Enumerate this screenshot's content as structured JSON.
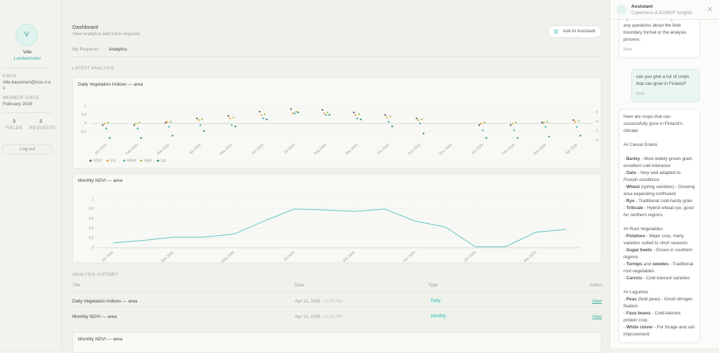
{
  "sidebar": {
    "avatar": "V",
    "name": "Ville",
    "role": "Landactivator",
    "email_label": "EMAIL",
    "email": "ville.kasurinen@icos-ri.eu",
    "member_label": "MEMBER SINCE",
    "member_since": "February 2026",
    "stats": [
      {
        "value": 3,
        "label": "FIELDS"
      },
      {
        "value": 3,
        "label": "REQUESTS"
      }
    ],
    "logout": "Log out"
  },
  "header": {
    "title": "Dashboard",
    "subtitle": "View analytics and track requests",
    "ask_button": "Ask AI Assistant",
    "tabs": [
      "My Requests",
      "Analytics"
    ]
  },
  "latest_analysis": {
    "heading": "LATEST ANALYSIS",
    "charts": [
      {
        "type": "scatter",
        "title": "Daily Vegetation Indices — area",
        "categories": [
          "Jan 2025",
          "Feb 2025",
          "Mar 2025",
          "Apr 2025",
          "May 2025",
          "Jun 2025",
          "Jul 2025",
          "Aug 2025",
          "Sep 2025",
          "Oct 2025",
          "Nov 2025",
          "Dec 2025",
          "Jan 2026",
          "Feb 2026",
          "Mar 2026",
          "Apr 2026"
        ],
        "series": [
          {
            "name": "NDVI",
            "color": "#555555",
            "values": [
              -0.1,
              -0.1,
              0.05,
              0.3,
              0.45,
              0.7,
              0.85,
              0.8,
              0.65,
              0.5,
              0.3,
              null,
              -0.1,
              -0.1,
              0.05,
              0.2
            ]
          },
          {
            "name": "EVI",
            "color": "#e0a030",
            "values": [
              0.0,
              0.0,
              0.1,
              0.2,
              0.3,
              0.5,
              0.6,
              0.6,
              0.5,
              0.35,
              0.2,
              null,
              0.0,
              0.0,
              0.05,
              0.1
            ]
          },
          {
            "name": "NDWI",
            "color": "#3ab0a0",
            "values": [
              -0.3,
              -0.3,
              -0.2,
              -0.1,
              -0.1,
              0.3,
              0.6,
              0.5,
              0.3,
              0.1,
              0.0,
              null,
              -0.4,
              -0.4,
              -0.2,
              -0.2
            ]
          },
          {
            "name": "SAVI",
            "color": "#a0c040",
            "values": [
              0.05,
              0.05,
              0.1,
              0.25,
              0.35,
              0.55,
              0.7,
              0.65,
              0.55,
              0.4,
              0.25,
              null,
              0.05,
              0.05,
              0.1,
              0.15
            ]
          },
          {
            "name": "LAI",
            "color": "#2a8a70",
            "axis": "y2",
            "values": [
              0.5,
              0.5,
              1,
              2,
              3,
              4.5,
              6,
              5.5,
              4.5,
              3,
              1.5,
              null,
              0.5,
              0.5,
              0.8,
              1
            ]
          }
        ],
        "ylim": [
          -1,
          1.2
        ],
        "yticks": [
          -0.5,
          0,
          0.5,
          1
        ],
        "y2lim": [
          0,
          8
        ],
        "y2ticks": [
          0,
          2,
          4,
          6
        ],
        "grid": true
      },
      {
        "type": "line",
        "title": "Monthly NDVI — area",
        "categories": [
          "Jan 2025",
          null,
          "Mar 2025",
          null,
          "May 2025",
          null,
          "Jul 2025",
          null,
          "Sep 2025",
          null,
          "Nov 2025",
          null,
          "Jan 2026",
          null,
          "Mar 2026",
          null
        ],
        "values": [
          0.1,
          0.15,
          0.22,
          0.22,
          0.28,
          0.55,
          0.8,
          0.78,
          0.75,
          0.8,
          0.55,
          0.43,
          0.02,
          0.02,
          0.32,
          0.38
        ],
        "color": "#5cc8c0",
        "ylim": [
          0,
          1
        ],
        "yticks": [
          0,
          0.2,
          0.4,
          0.6,
          0.8,
          1
        ],
        "grid": true
      }
    ]
  },
  "history": {
    "heading": "ANALYSIS HISTORY",
    "columns": [
      "Title",
      "Date",
      "Type",
      "Action"
    ],
    "rows": [
      {
        "title": "Daily Vegetation Indices — area",
        "date": "Apr 13, 2026",
        "time": "12:24 PM",
        "type": "Daily",
        "action": "View"
      },
      {
        "title": "Monthly NDVI — area",
        "date": "Apr 13, 2026",
        "time": "12:24 PM",
        "type": "Monthly",
        "action": "Hide"
      }
    ],
    "next_card_title": "Monthly NDVI — area"
  },
  "assistant": {
    "title": "Assistant",
    "subtitle": "Copernicus & ECMWF Insights",
    "messages": [
      {
        "role": "assistant",
        "lines": [
          [
            "again, or let me know if you have any questions about the field boundary format or the analysis process."
          ]
        ],
        "time": "Now"
      },
      {
        "role": "user",
        "lines": [
          [
            "can you give a list of crops that can grow in Finland?"
          ]
        ],
        "time": "Now"
      },
      {
        "role": "assistant",
        "lines": [
          [
            "Here are crops that can successfully grow in Finland's climate:"
          ],
          [
            "## Cereal Grains"
          ],
          [
            "- ",
            "Barley",
            " - Most widely grown grain, excellent cold tolerance"
          ],
          [
            "- ",
            "Oats",
            " - Very well adapted to Finnish conditions"
          ],
          [
            "- ",
            "Wheat",
            " (spring varieties) - Growing area expanding northward"
          ],
          [
            "- ",
            "Rye",
            " - Traditional cold-hardy grain"
          ],
          [
            "- ",
            "Triticale",
            " - Hybrid wheat-rye, good for northern regions"
          ],
          [
            "## Root Vegetables"
          ],
          [
            "- ",
            "Potatoes",
            " - Major crop, many varieties suited to short seasons"
          ],
          [
            "- ",
            "Sugar beets",
            " - Grown in southern regions"
          ],
          [
            "- ",
            "Turnips",
            " and ",
            "swedes",
            " - Traditional root vegetables"
          ],
          [
            "- ",
            "Carrots",
            " - Cold-tolerant varieties"
          ],
          [
            "## Legumes"
          ],
          [
            "- ",
            "Peas",
            " (field peas) - Good nitrogen fixation"
          ],
          [
            "- ",
            "Fava beans",
            " - Cold-tolerant protein crop"
          ],
          [
            "- ",
            "White clover",
            " - For forage and soil improvement"
          ]
        ]
      }
    ]
  }
}
